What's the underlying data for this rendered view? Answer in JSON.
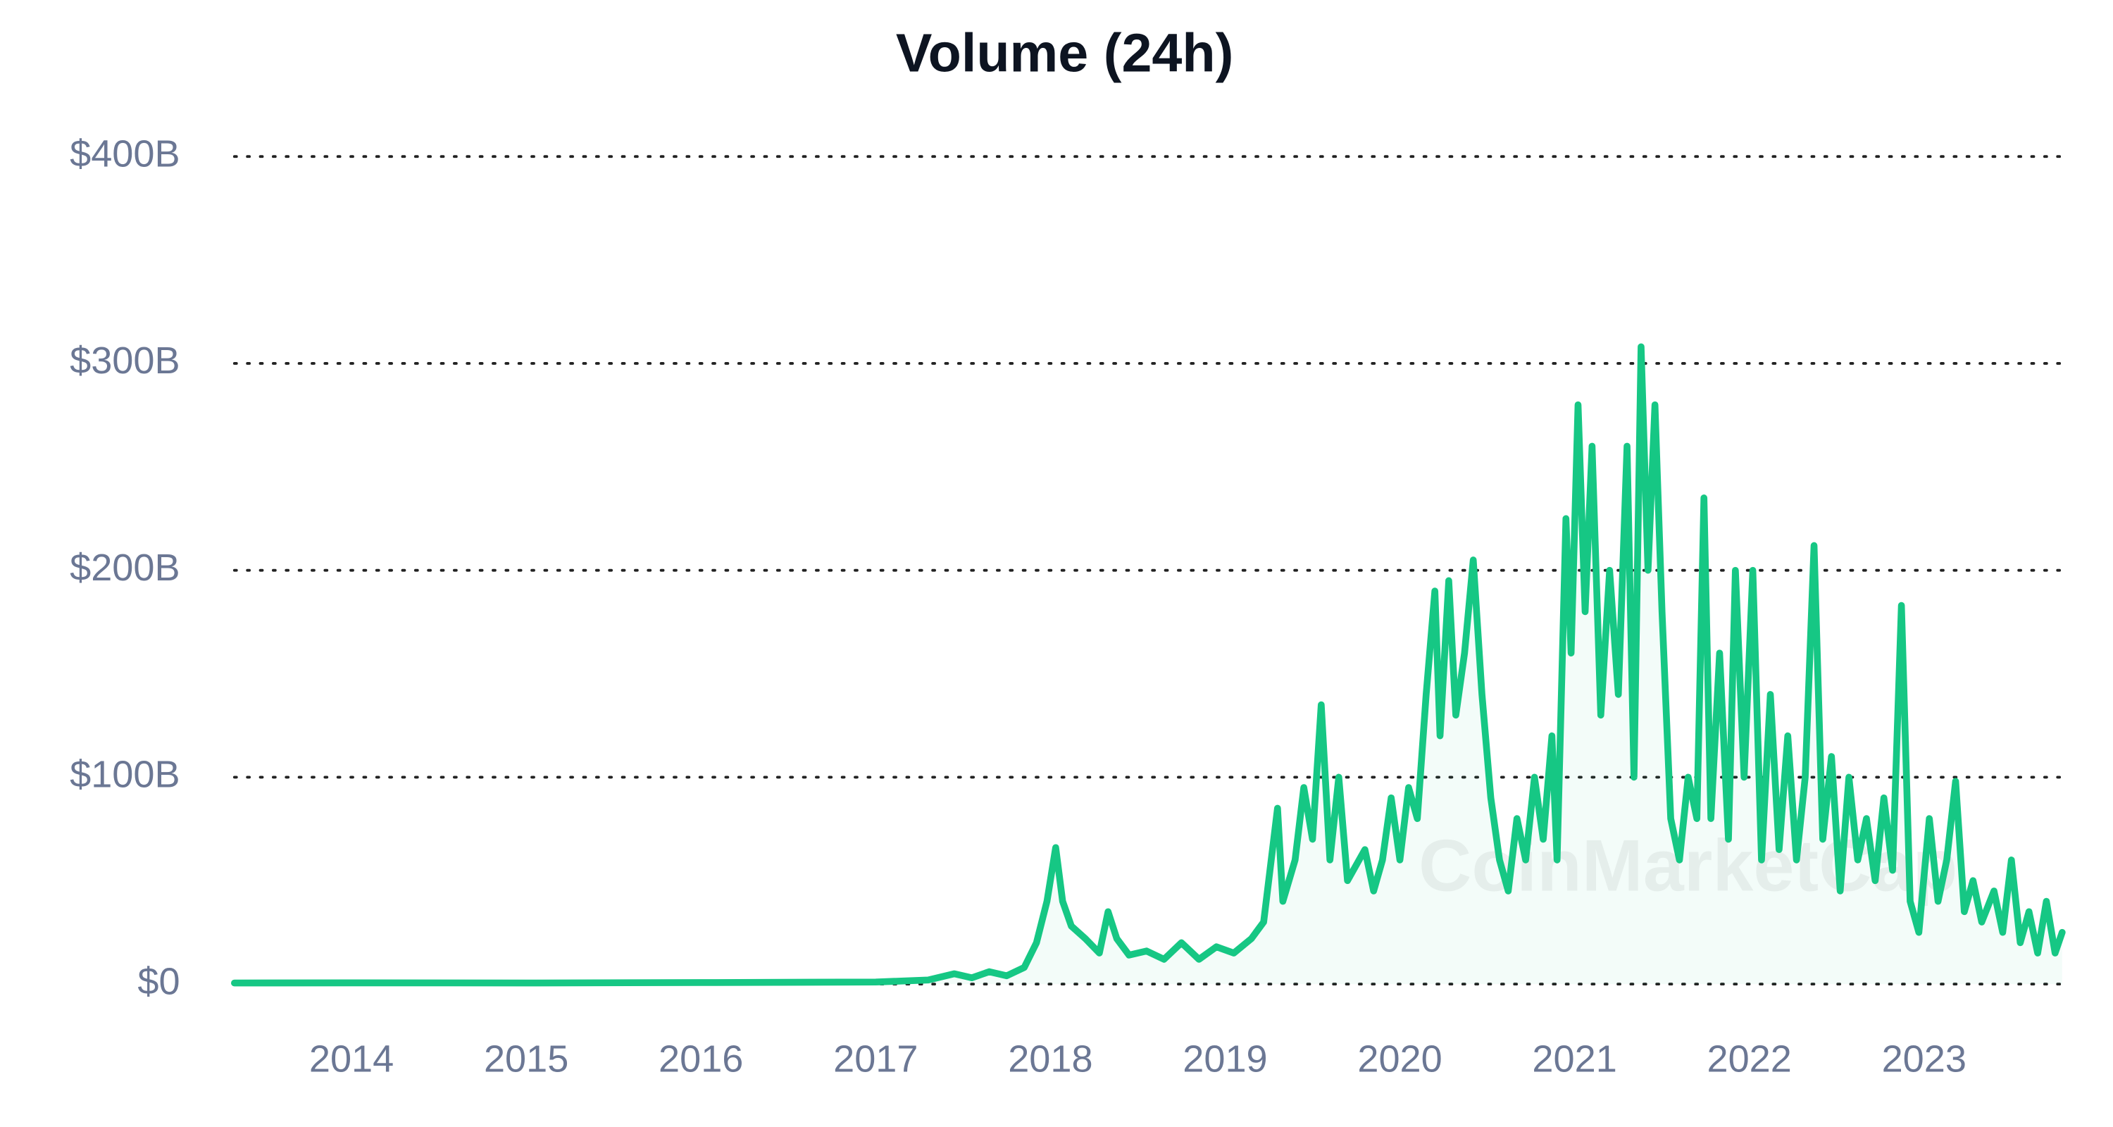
{
  "chart_data": {
    "type": "line",
    "title": "Volume (24h)",
    "watermark": "CoinMarketCap",
    "color": "#16c784",
    "grid": true,
    "xlim": [
      2013.33,
      2023.83
    ],
    "xticks": [
      2014,
      2015,
      2016,
      2017,
      2018,
      2019,
      2020,
      2021,
      2022,
      2023
    ],
    "ylim": [
      0,
      400000000000.0
    ],
    "yticks": [
      {
        "value": 0,
        "label": "$0"
      },
      {
        "value": 100000000000.0,
        "label": "$100B"
      },
      {
        "value": 200000000000.0,
        "label": "$200B"
      },
      {
        "value": 300000000000.0,
        "label": "$300B"
      },
      {
        "value": 400000000000.0,
        "label": "$400B"
      }
    ],
    "x": [
      2013.33,
      2014,
      2015,
      2016,
      2017,
      2017.3,
      2017.45,
      2017.55,
      2017.65,
      2017.75,
      2017.85,
      2017.92,
      2017.98,
      2018.03,
      2018.07,
      2018.12,
      2018.2,
      2018.28,
      2018.33,
      2018.38,
      2018.45,
      2018.55,
      2018.65,
      2018.75,
      2018.85,
      2018.95,
      2019.05,
      2019.15,
      2019.22,
      2019.3,
      2019.33,
      2019.4,
      2019.45,
      2019.5,
      2019.55,
      2019.6,
      2019.65,
      2019.7,
      2019.8,
      2019.85,
      2019.9,
      2019.95,
      2020.0,
      2020.05,
      2020.1,
      2020.15,
      2020.2,
      2020.23,
      2020.28,
      2020.32,
      2020.37,
      2020.42,
      2020.47,
      2020.52,
      2020.57,
      2020.62,
      2020.67,
      2020.72,
      2020.77,
      2020.82,
      2020.87,
      2020.9,
      2020.95,
      2020.98,
      2021.02,
      2021.06,
      2021.1,
      2021.15,
      2021.2,
      2021.25,
      2021.3,
      2021.34,
      2021.38,
      2021.42,
      2021.46,
      2021.5,
      2021.55,
      2021.6,
      2021.65,
      2021.7,
      2021.74,
      2021.78,
      2021.83,
      2021.88,
      2021.92,
      2021.97,
      2022.02,
      2022.07,
      2022.12,
      2022.17,
      2022.22,
      2022.27,
      2022.32,
      2022.37,
      2022.42,
      2022.47,
      2022.52,
      2022.57,
      2022.62,
      2022.67,
      2022.72,
      2022.77,
      2022.82,
      2022.87,
      2022.92,
      2022.97,
      2023.03,
      2023.08,
      2023.13,
      2023.18,
      2023.23,
      2023.28,
      2023.33,
      2023.4,
      2023.45,
      2023.5,
      2023.55,
      2023.6,
      2023.65,
      2023.7,
      2023.75,
      2023.79
    ],
    "values": [
      500000000.0,
      600000000.0,
      500000000.0,
      700000000.0,
      1000000000.0,
      2000000000.0,
      5000000000.0,
      3000000000.0,
      6000000000.0,
      4000000000.0,
      8000000000.0,
      20000000000.0,
      40000000000.0,
      66000000000.0,
      40000000000.0,
      28000000000.0,
      22000000000.0,
      15000000000.0,
      35000000000.0,
      22000000000.0,
      14000000000.0,
      16000000000.0,
      12000000000.0,
      20000000000.0,
      12000000000.0,
      18000000000.0,
      15000000000.0,
      22000000000.0,
      30000000000.0,
      85000000000.0,
      40000000000.0,
      60000000000.0,
      95000000000.0,
      70000000000.0,
      135000000000.0,
      60000000000.0,
      100000000000.0,
      50000000000.0,
      65000000000.0,
      45000000000.0,
      60000000000.0,
      90000000000.0,
      60000000000.0,
      95000000000.0,
      80000000000.0,
      140000000000.0,
      190000000000.0,
      120000000000.0,
      195000000000.0,
      130000000000.0,
      160000000000.0,
      205000000000.0,
      140000000000.0,
      90000000000.0,
      60000000000.0,
      45000000000.0,
      80000000000.0,
      60000000000.0,
      100000000000.0,
      70000000000.0,
      120000000000.0,
      60000000000.0,
      225000000000.0,
      160000000000.0,
      280000000000.0,
      180000000000.0,
      260000000000.0,
      130000000000.0,
      200000000000.0,
      140000000000.0,
      260000000000.0,
      100000000000.0,
      308000000000.0,
      200000000000.0,
      280000000000.0,
      180000000000.0,
      80000000000.0,
      60000000000.0,
      100000000000.0,
      80000000000.0,
      235000000000.0,
      80000000000.0,
      160000000000.0,
      70000000000.0,
      200000000000.0,
      100000000000.0,
      200000000000.0,
      60000000000.0,
      140000000000.0,
      65000000000.0,
      120000000000.0,
      60000000000.0,
      100000000000.0,
      212000000000.0,
      70000000000.0,
      110000000000.0,
      45000000000.0,
      100000000000.0,
      60000000000.0,
      80000000000.0,
      50000000000.0,
      90000000000.0,
      55000000000.0,
      183000000000.0,
      40000000000.0,
      25000000000.0,
      80000000000.0,
      40000000000.0,
      60000000000.0,
      98000000000.0,
      35000000000.0,
      50000000000.0,
      30000000000.0,
      45000000000.0,
      25000000000.0,
      60000000000.0,
      20000000000.0,
      35000000000.0,
      15000000000.0,
      40000000000.0,
      15000000000.0,
      25000000000.0
    ]
  }
}
